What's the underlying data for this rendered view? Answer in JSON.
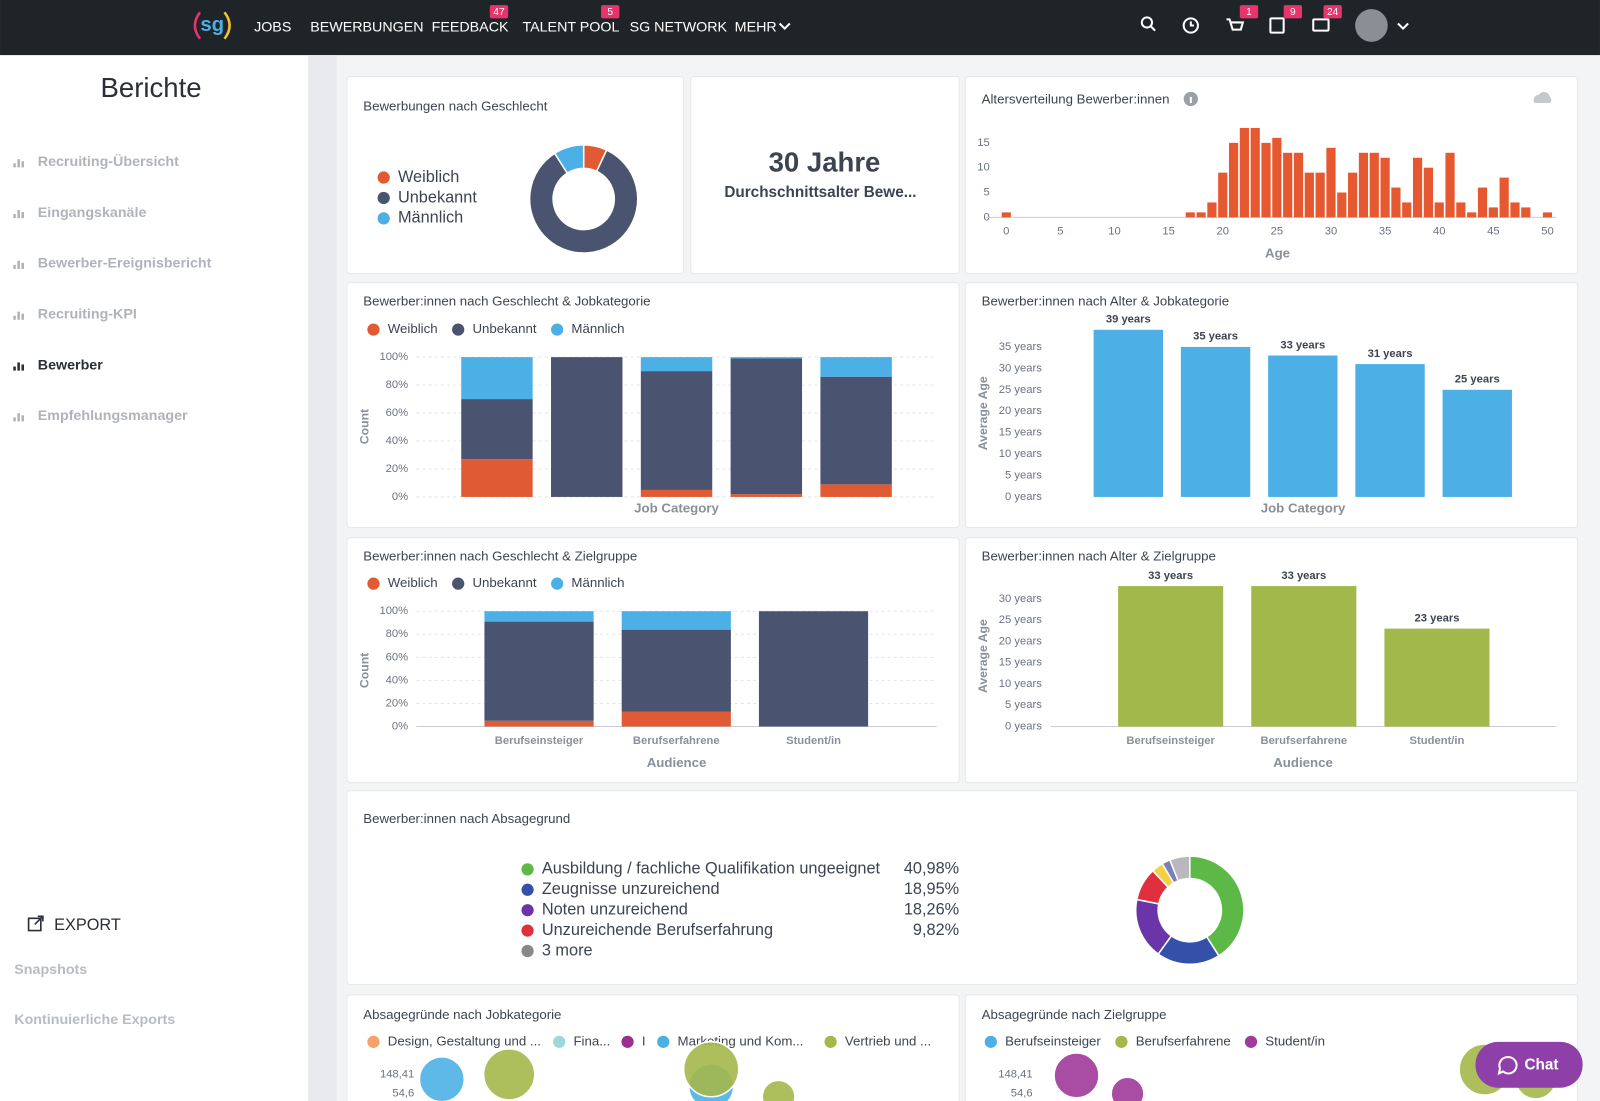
{
  "nav": {
    "logo": "sg",
    "items": [
      {
        "label": "JOBS"
      },
      {
        "label": "BEWERBUNGEN"
      },
      {
        "label": "FEEDBACK",
        "badge": 47
      },
      {
        "label": "TALENT POOL",
        "badge": 5
      },
      {
        "label": "SG NETWORK"
      },
      {
        "label": "MEHR"
      }
    ],
    "icon_badges": [
      1,
      9,
      24
    ]
  },
  "sidebar": {
    "title": "Berichte",
    "items": [
      "Recruiting-Übersicht",
      "Eingangskanäle",
      "Bewerber-Ereignisbericht",
      "Recruiting-KPI",
      "Bewerber",
      "Empfehlungsmanager"
    ],
    "active": 4,
    "export": "EXPORT",
    "links": [
      "Snapshots",
      "Kontinuierliche Exports"
    ]
  },
  "kpi": {
    "value": "30 Jahre",
    "label": "Durchschnittsalter Bewe..."
  },
  "chat": "Chat",
  "chart_data": [
    {
      "type": "donut",
      "title": "Bewerbungen nach Geschlecht",
      "categories": [
        "Weiblich",
        "Unbekannt",
        "Männlich"
      ],
      "values": [
        7,
        84,
        9
      ],
      "colors": [
        "#e05a33",
        "#4a5370",
        "#4cb0e6"
      ]
    },
    {
      "type": "histogram",
      "title": "Altersverteilung Bewerber:innen",
      "xlabel": "Age",
      "color": "#e6582f",
      "bins": [
        -0.5,
        0.5,
        1.5,
        2.5,
        3.5,
        4.5,
        5.5,
        6.5,
        7.5,
        8.5,
        9.5,
        10.5,
        11.5,
        12.5,
        13.5,
        14.5,
        15.5,
        16.5,
        17.5,
        18.5,
        19.5,
        20.5,
        21.5,
        22.5,
        23.5,
        24.5,
        25.5,
        26.5,
        27.5,
        28.5,
        29.5,
        30.5,
        31.5,
        32.5,
        33.5,
        34.5,
        35.5,
        36.5,
        37.5,
        38.5,
        39.5,
        40.5,
        41.5,
        42.5,
        43.5,
        44.5,
        45.5,
        46.5,
        47.5,
        48.5,
        49.5,
        50.5
      ],
      "values": [
        1,
        0,
        0,
        0,
        0,
        0,
        0,
        0,
        0,
        0,
        0,
        0,
        0,
        0,
        0,
        0,
        0,
        1,
        1,
        3,
        9,
        15,
        18,
        18,
        15,
        16,
        13,
        13,
        9,
        9,
        14,
        5,
        9,
        13,
        13,
        12,
        6,
        3,
        12,
        10,
        3,
        13,
        3,
        1,
        6,
        2,
        8,
        3,
        2,
        0,
        1
      ],
      "xlim": [
        -1.9,
        50.8
      ],
      "xticks": [
        0,
        5,
        10,
        15,
        20,
        25,
        30,
        35,
        40,
        45,
        50
      ],
      "ylim": [
        0,
        18
      ],
      "yticks": [
        0,
        5,
        10,
        15
      ],
      "grid": false
    },
    {
      "type": "stacked_bar",
      "title": "Bewerber:innen nach Geschlecht & Jobkategorie",
      "xlabel": "Job Category",
      "ylabel": "Count",
      "categories": [
        null,
        null,
        null,
        null,
        null
      ],
      "series": [
        {
          "name": "Weiblich",
          "color": "#e05a33",
          "values": [
            27,
            0,
            5,
            2,
            9
          ]
        },
        {
          "name": "Unbekannt",
          "color": "#4a5370",
          "values": [
            43,
            100,
            85,
            97,
            77
          ]
        },
        {
          "name": "Männlich",
          "color": "#4cb0e6",
          "values": [
            30,
            0,
            10,
            1,
            14
          ]
        }
      ],
      "ylim": [
        0,
        100
      ],
      "yticks": [
        {
          "value": 0,
          "label": "0%"
        },
        {
          "value": 20,
          "label": "20%"
        },
        {
          "value": 40,
          "label": "40%"
        },
        {
          "value": 60,
          "label": "60%"
        },
        {
          "value": 80,
          "label": "80%"
        },
        {
          "value": 100,
          "label": "100%"
        }
      ],
      "grid": true
    },
    {
      "type": "bar",
      "title": "Bewerber:innen nach Alter & Jobkategorie",
      "xlabel": "Job Category",
      "ylabel": "Average Age",
      "color": "#4cb0e6",
      "categories": [
        null,
        null,
        null,
        null,
        null
      ],
      "values": [
        39,
        35,
        33,
        31,
        25
      ],
      "value_labels": [
        "39 years",
        "35 years",
        "33 years",
        "31 years",
        "25 years"
      ],
      "ylim": [
        0,
        40
      ],
      "yticks": [
        {
          "value": 0,
          "label": "0 years"
        },
        {
          "value": 5,
          "label": "5 years"
        },
        {
          "value": 10,
          "label": "10 years"
        },
        {
          "value": 15,
          "label": "15 years"
        },
        {
          "value": 20,
          "label": "20 years"
        },
        {
          "value": 25,
          "label": "25 years"
        },
        {
          "value": 30,
          "label": "30 years"
        },
        {
          "value": 35,
          "label": "35 years"
        }
      ],
      "grid": false
    },
    {
      "type": "stacked_bar",
      "title": "Bewerber:innen nach Geschlecht & Zielgruppe",
      "xlabel": "Audience",
      "ylabel": "Count",
      "categories": [
        "Berufseinsteiger",
        "Berufserfahrene",
        "Student/in"
      ],
      "series": [
        {
          "name": "Weiblich",
          "color": "#e05a33",
          "values": [
            5,
            13,
            0
          ]
        },
        {
          "name": "Unbekannt",
          "color": "#4a5370",
          "values": [
            86,
            71,
            100
          ]
        },
        {
          "name": "Männlich",
          "color": "#4cb0e6",
          "values": [
            9,
            16,
            0
          ]
        }
      ],
      "ylim": [
        0,
        100
      ],
      "yticks": [
        {
          "value": 0,
          "label": "0%"
        },
        {
          "value": 20,
          "label": "20%"
        },
        {
          "value": 40,
          "label": "40%"
        },
        {
          "value": 60,
          "label": "60%"
        },
        {
          "value": 80,
          "label": "80%"
        },
        {
          "value": 100,
          "label": "100%"
        }
      ],
      "grid": true
    },
    {
      "type": "bar",
      "title": "Bewerber:innen nach Alter & Zielgruppe",
      "xlabel": "Audience",
      "ylabel": "Average Age",
      "color": "#a3b84a",
      "categories": [
        "Berufseinsteiger",
        "Berufserfahrene",
        "Student/in"
      ],
      "values": [
        33,
        33,
        23
      ],
      "value_labels": [
        "33 years",
        "33 years",
        "23 years"
      ],
      "ylim": [
        0,
        35
      ],
      "yticks": [
        {
          "value": 0,
          "label": "0 years"
        },
        {
          "value": 5,
          "label": "5 years"
        },
        {
          "value": 10,
          "label": "10 years"
        },
        {
          "value": 15,
          "label": "15 years"
        },
        {
          "value": 20,
          "label": "20 years"
        },
        {
          "value": 25,
          "label": "25 years"
        },
        {
          "value": 30,
          "label": "30 years"
        }
      ],
      "grid": false
    },
    {
      "type": "donut",
      "title": "Bewerber:innen nach Absagegrund",
      "categories": [
        "Ausbildung / fachliche Qualifikation ungeeignet",
        "Zeugnisse unzureichend",
        "Noten unzureichend",
        "Unzureichende Berufserfahrung",
        null,
        null,
        null
      ],
      "values": [
        40.98,
        18.95,
        18.26,
        9.82,
        3.5,
        2.5,
        6
      ],
      "value_labels": [
        "40,98%",
        "18,95%",
        "18,26%",
        "9,82%",
        null,
        null,
        null
      ],
      "colors": [
        "#5cb947",
        "#3550a8",
        "#6a35a8",
        "#e0303f",
        "#f2d240",
        "#7c7fb8",
        "#b8b8be"
      ],
      "more_label": "3 more",
      "more_color": "#888888"
    },
    {
      "type": "bubble",
      "title": "Absagegründe nach Jobkategorie",
      "categories": [
        null,
        null,
        null,
        null,
        null,
        null,
        null,
        null
      ],
      "series": [
        {
          "name": "Design, Gestaltung und ...",
          "color": "#f4a26b",
          "values": [
            null,
            null,
            null,
            null,
            null,
            null,
            null,
            null
          ],
          "sizes": [
            null,
            null,
            null,
            null,
            null,
            null,
            null,
            null
          ]
        },
        {
          "name": "Fina...",
          "color": "#9fd8d8",
          "values": [
            null,
            null,
            null,
            null,
            null,
            null,
            null,
            null
          ],
          "sizes": [
            null,
            null,
            null,
            null,
            null,
            null,
            null,
            null
          ]
        },
        {
          "name": "I",
          "color": "#9b2d8e",
          "values": [
            null,
            null,
            null,
            null,
            null,
            null,
            null,
            null
          ],
          "sizes": [
            null,
            null,
            null,
            null,
            null,
            null,
            null,
            null
          ]
        },
        {
          "name": "Marketing und Kom...",
          "color": "#4cb0e6",
          "values": [
            115,
            null,
            null,
            null,
            80,
            null,
            null,
            null
          ],
          "sizes": [
            22,
            null,
            null,
            null,
            22,
            null,
            null,
            null
          ]
        },
        {
          "name": "Vertrieb und ...",
          "color": "#a3b84a",
          "values": [
            null,
            148,
            null,
            null,
            193,
            47,
            null,
            null
          ],
          "sizes": [
            null,
            25,
            null,
            null,
            27,
            16,
            null,
            null
          ]
        }
      ],
      "log_scale": true,
      "ylim": [
        20,
        400
      ],
      "yticks": [
        {
          "value": 148.41,
          "label": "148,41"
        },
        {
          "value": 54.6,
          "label": "54,6"
        }
      ]
    },
    {
      "type": "bubble",
      "title": "Absagegründe nach Zielgruppe",
      "categories": [
        null,
        null,
        null,
        null,
        null,
        null,
        null,
        null,
        null,
        null
      ],
      "series": [
        {
          "name": "Berufseinsteiger",
          "color": "#4cb0e6",
          "values": [
            null,
            null,
            null,
            null,
            null,
            null,
            null,
            null,
            null,
            null
          ],
          "sizes": [
            null,
            null,
            null,
            null,
            null,
            null,
            null,
            null,
            null,
            null
          ]
        },
        {
          "name": "Berufserfahrene",
          "color": "#a3b84a",
          "values": [
            null,
            null,
            null,
            null,
            null,
            null,
            null,
            null,
            190,
            120
          ],
          "sizes": [
            null,
            null,
            null,
            null,
            null,
            null,
            null,
            null,
            25,
            20
          ]
        },
        {
          "name": "Student/in",
          "color": "#a03a9a",
          "values": [
            140,
            55,
            null,
            null,
            null,
            null,
            null,
            null,
            null,
            null
          ],
          "sizes": [
            22,
            16,
            null,
            null,
            null,
            null,
            null,
            null,
            null,
            null
          ]
        }
      ],
      "log_scale": true,
      "ylim": [
        20,
        400
      ],
      "yticks": [
        {
          "value": 148.41,
          "label": "148,41"
        },
        {
          "value": 54.6,
          "label": "54,6"
        }
      ]
    }
  ]
}
